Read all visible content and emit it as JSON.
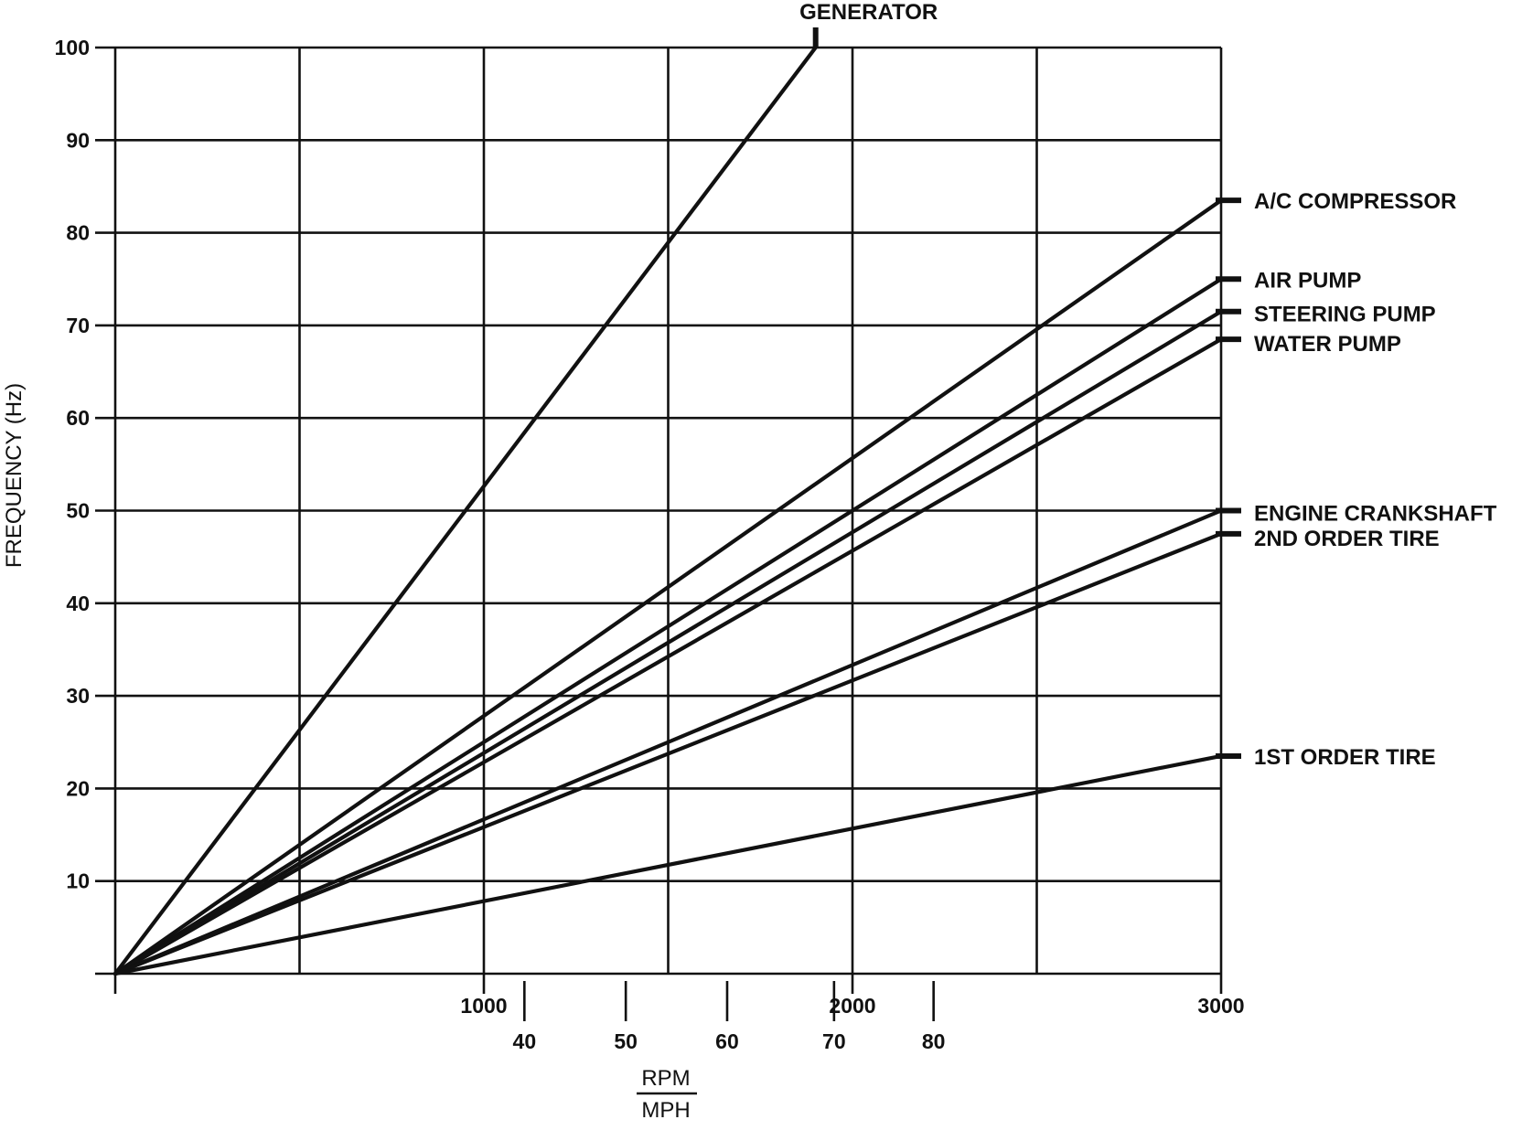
{
  "chart_data": {
    "type": "line",
    "title": "",
    "ylabel": "FREQUENCY (Hz)",
    "xlabel_top": "RPM",
    "xlabel_bottom": "MPH",
    "ylim": [
      0,
      100
    ],
    "xlim": [
      0,
      3000
    ],
    "grid": true,
    "y_ticks": [
      10,
      20,
      30,
      40,
      50,
      60,
      70,
      80,
      90,
      100
    ],
    "rpm_ticks": [
      {
        "value": 1000,
        "label": "1000"
      },
      {
        "value": 2000,
        "label": "2000"
      },
      {
        "value": 3000,
        "label": "3000"
      }
    ],
    "mph_ticks": [
      {
        "rpm": 1110,
        "label": "40"
      },
      {
        "rpm": 1385,
        "label": "50"
      },
      {
        "rpm": 1660,
        "label": "60"
      },
      {
        "rpm": 1950,
        "label": "70"
      },
      {
        "rpm": 2220,
        "label": "80"
      }
    ],
    "series": [
      {
        "name": "GENERATOR",
        "x": [
          0,
          1900
        ],
        "y": [
          0,
          100
        ]
      },
      {
        "name": "A/C COMPRESSOR",
        "x": [
          0,
          3000
        ],
        "y": [
          0,
          83.5
        ]
      },
      {
        "name": "AIR PUMP",
        "x": [
          0,
          3000
        ],
        "y": [
          0,
          75
        ]
      },
      {
        "name": "STEERING PUMP",
        "x": [
          0,
          3000
        ],
        "y": [
          0,
          71.5
        ]
      },
      {
        "name": "WATER PUMP",
        "x": [
          0,
          3000
        ],
        "y": [
          0,
          68.5
        ]
      },
      {
        "name": "ENGINE CRANKSHAFT",
        "x": [
          0,
          3000
        ],
        "y": [
          0,
          50
        ]
      },
      {
        "name": "2ND ORDER TIRE",
        "x": [
          0,
          3000
        ],
        "y": [
          0,
          47.5
        ]
      },
      {
        "name": "1ST ORDER TIRE",
        "x": [
          0,
          3000
        ],
        "y": [
          0,
          23.5
        ]
      }
    ]
  }
}
